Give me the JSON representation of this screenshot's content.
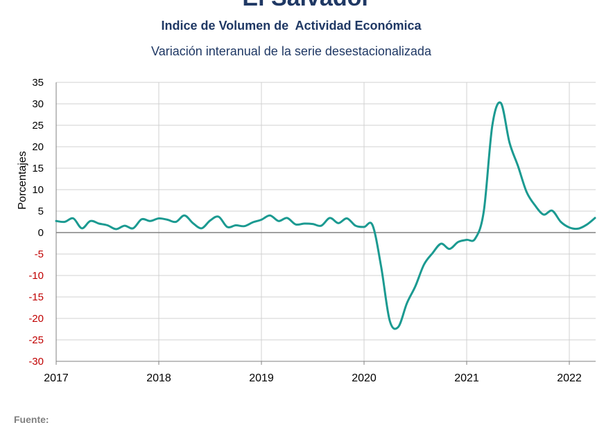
{
  "header": {
    "title": "El Salvador",
    "subtitle1": "Indice de Volumen de  Actividad Económica",
    "subtitle2": "Variación interanual de la serie desestacionalizada"
  },
  "footer": {
    "source_label": "Fuente:"
  },
  "chart_data": {
    "type": "line",
    "ylabel": "Porcentajes",
    "ylim": [
      -30,
      35
    ],
    "yticks": [
      35,
      30,
      25,
      20,
      15,
      10,
      5,
      0,
      -5,
      -10,
      -15,
      -20,
      -25,
      -30
    ],
    "xlim": [
      2017,
      2022.25
    ],
    "xticks": [
      "2017",
      "2018",
      "2019",
      "2020",
      "2021",
      "2022"
    ],
    "grid": true,
    "colors": {
      "line": "#1b9a91",
      "negative_ticks": "#c00000",
      "grid": "#d0d0d0",
      "zero": "#808080"
    },
    "series": [
      {
        "x": [
          2017.0,
          2017.083,
          2017.167,
          2017.25,
          2017.333,
          2017.417,
          2017.5,
          2017.583,
          2017.667,
          2017.75,
          2017.833,
          2017.917,
          2018.0,
          2018.083,
          2018.167,
          2018.25,
          2018.333,
          2018.417,
          2018.5,
          2018.583,
          2018.667,
          2018.75,
          2018.833,
          2018.917,
          2019.0,
          2019.083,
          2019.167,
          2019.25,
          2019.333,
          2019.417,
          2019.5,
          2019.583,
          2019.667,
          2019.75,
          2019.833,
          2019.917,
          2020.0,
          2020.083,
          2020.167,
          2020.25,
          2020.333,
          2020.417,
          2020.5,
          2020.583,
          2020.667,
          2020.75,
          2020.833,
          2020.917,
          2021.0,
          2021.083,
          2021.167,
          2021.25,
          2021.333,
          2021.417,
          2021.5,
          2021.583,
          2021.667,
          2021.75,
          2021.833,
          2021.917,
          2022.0,
          2022.083,
          2022.167,
          2022.25
        ],
        "values": [
          2.7,
          2.5,
          3.3,
          1.0,
          2.7,
          2.1,
          1.7,
          0.8,
          1.6,
          1.0,
          3.1,
          2.7,
          3.3,
          3.0,
          2.5,
          4.0,
          2.2,
          1.0,
          2.8,
          3.7,
          1.3,
          1.7,
          1.5,
          2.4,
          3.0,
          4.0,
          2.7,
          3.4,
          1.9,
          2.1,
          2.0,
          1.6,
          3.4,
          2.2,
          3.3,
          1.6,
          1.3,
          1.7,
          -8.0,
          -20.5,
          -22.0,
          -16.5,
          -12.5,
          -7.5,
          -4.8,
          -2.6,
          -3.8,
          -2.2,
          -1.7,
          -1.4,
          5.0,
          25.0,
          30.2,
          21.0,
          15.5,
          9.5,
          6.3,
          4.2,
          5.1,
          2.5,
          1.2,
          0.9,
          1.8,
          3.4
        ]
      }
    ]
  }
}
